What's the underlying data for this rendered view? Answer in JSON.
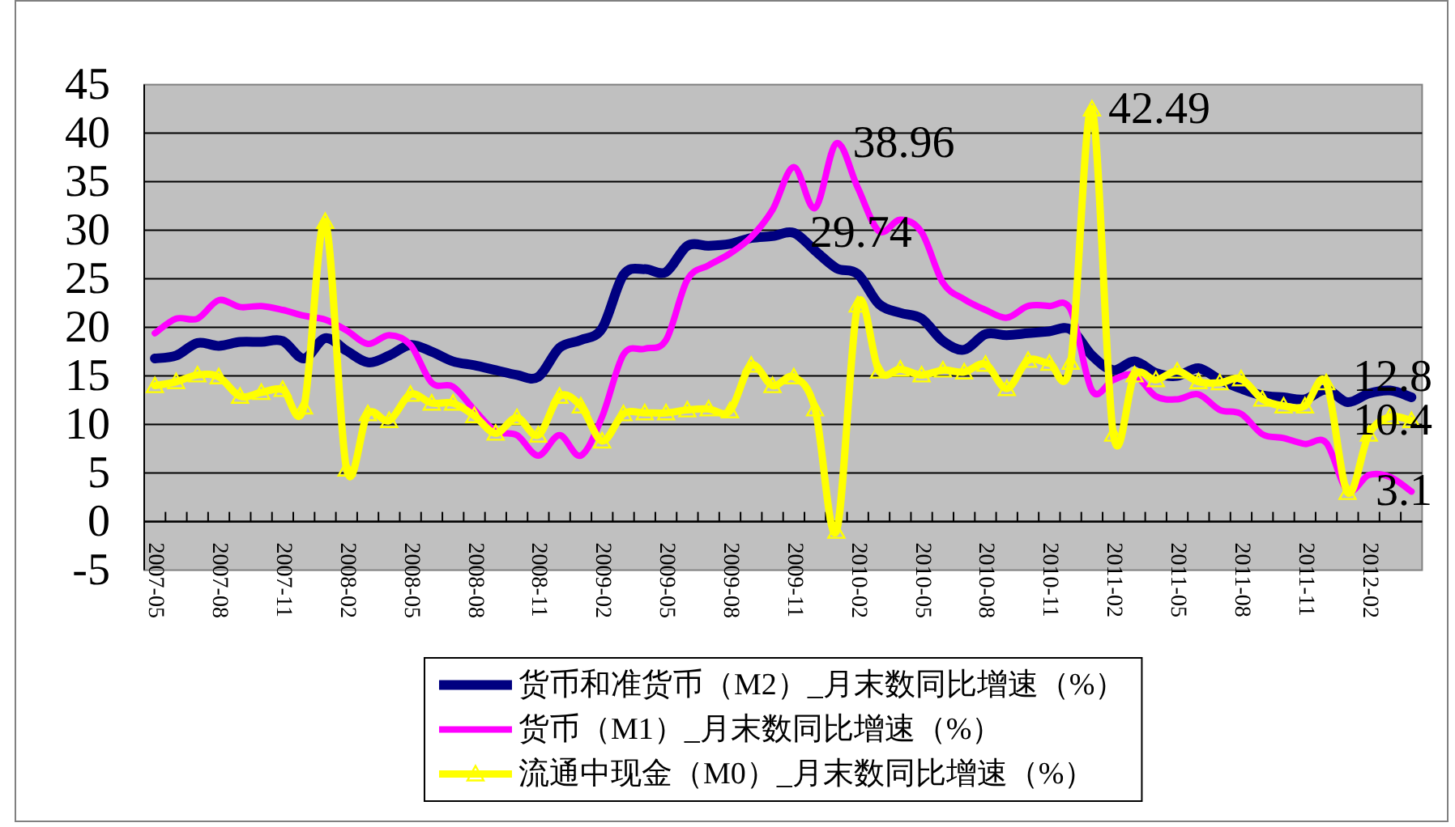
{
  "chart_data": {
    "type": "line",
    "categories": [
      "2007-05",
      null,
      null,
      "2007-08",
      null,
      null,
      "2007-11",
      null,
      null,
      "2008-02",
      null,
      null,
      "2008-05",
      null,
      null,
      "2008-08",
      null,
      null,
      "2008-11",
      null,
      null,
      "2009-02",
      null,
      null,
      "2009-05",
      null,
      null,
      "2009-08",
      null,
      null,
      "2009-11",
      null,
      null,
      "2010-02",
      null,
      null,
      "2010-05",
      null,
      null,
      "2010-08",
      null,
      null,
      "2010-11",
      null,
      null,
      "2011-02",
      null,
      null,
      "2011-05",
      null,
      null,
      "2011-08",
      null,
      null,
      "2011-11",
      null,
      null,
      "2012-02",
      null,
      null
    ],
    "ylim": [
      -5,
      45
    ],
    "yticks": [
      -5,
      0,
      5,
      10,
      15,
      20,
      25,
      30,
      35,
      40,
      45
    ],
    "grid": "y",
    "legend": "bottom",
    "series": [
      {
        "name": "货币和准货币（M2）_月末数同比增速（%）",
        "color": "#000080",
        "values": [
          16.8,
          17.1,
          18.4,
          18.1,
          18.5,
          18.5,
          18.6,
          16.8,
          18.9,
          17.6,
          16.4,
          17.1,
          18.2,
          17.5,
          16.5,
          16.1,
          15.6,
          15.1,
          14.9,
          17.9,
          18.7,
          19.9,
          25.4,
          26.0,
          25.7,
          28.4,
          28.4,
          28.6,
          29.2,
          29.4,
          29.74,
          27.9,
          26.1,
          25.5,
          22.4,
          21.5,
          20.9,
          18.6,
          17.7,
          19.3,
          19.2,
          19.4,
          19.6,
          19.8,
          17.1,
          15.6,
          16.5,
          15.3,
          15.0,
          15.8,
          14.6,
          13.7,
          13.0,
          12.8,
          12.6,
          13.6,
          12.3,
          13.2,
          13.5,
          12.8
        ],
        "value_labels": [
          null,
          null,
          null,
          null,
          null,
          null,
          null,
          null,
          null,
          null,
          null,
          null,
          null,
          null,
          null,
          null,
          null,
          null,
          null,
          null,
          null,
          null,
          null,
          null,
          null,
          null,
          null,
          null,
          null,
          null,
          "29.74",
          null,
          null,
          null,
          null,
          null,
          null,
          null,
          null,
          null,
          null,
          null,
          null,
          null,
          null,
          null,
          null,
          null,
          null,
          null,
          null,
          null,
          null,
          null,
          null,
          null,
          null,
          null,
          null,
          "12.8"
        ]
      },
      {
        "name": "货币（M1）_月末数同比增速（%）",
        "color": "#ff00ff",
        "values": [
          19.4,
          20.9,
          20.9,
          22.8,
          22.1,
          22.2,
          21.8,
          21.2,
          20.8,
          19.7,
          18.3,
          19.2,
          18.2,
          14.3,
          13.9,
          11.5,
          9.3,
          8.9,
          6.8,
          8.9,
          6.8,
          10.8,
          17.2,
          17.8,
          18.7,
          24.9,
          26.4,
          27.6,
          29.3,
          32.1,
          36.5,
          32.3,
          38.96,
          34.4,
          29.9,
          31.1,
          29.8,
          24.6,
          22.9,
          21.8,
          21.0,
          22.2,
          22.2,
          21.8,
          13.5,
          14.6,
          15.1,
          12.9,
          12.6,
          13.1,
          11.5,
          11.1,
          9.0,
          8.6,
          8.0,
          8.1,
          3.2,
          4.8,
          4.6,
          3.1
        ],
        "value_labels": [
          null,
          null,
          null,
          null,
          null,
          null,
          null,
          null,
          null,
          null,
          null,
          null,
          null,
          null,
          null,
          null,
          null,
          null,
          null,
          null,
          null,
          null,
          null,
          null,
          null,
          null,
          null,
          null,
          null,
          null,
          null,
          null,
          "38.96",
          null,
          null,
          null,
          null,
          null,
          null,
          null,
          null,
          null,
          null,
          null,
          null,
          null,
          null,
          null,
          null,
          null,
          null,
          null,
          null,
          null,
          null,
          null,
          null,
          null,
          null,
          "3.1"
        ]
      },
      {
        "name": "流通中现金（M0）_月末数同比增速（%）",
        "color": "#ffff00",
        "marker": "triangle",
        "values": [
          14.0,
          14.4,
          15.1,
          14.9,
          12.9,
          13.3,
          13.6,
          11.8,
          30.9,
          5.4,
          11.1,
          10.4,
          13.1,
          12.2,
          12.2,
          10.9,
          9.1,
          10.7,
          8.9,
          12.9,
          11.9,
          8.3,
          11.1,
          11.2,
          11.2,
          11.5,
          11.6,
          11.4,
          16.1,
          14.0,
          14.9,
          11.6,
          -1.0,
          22.3,
          15.5,
          15.7,
          15.1,
          15.6,
          15.4,
          16.2,
          13.7,
          16.6,
          16.3,
          16.4,
          42.49,
          9.0,
          15.1,
          14.6,
          15.5,
          14.4,
          14.3,
          14.7,
          12.6,
          11.9,
          11.9,
          14.3,
          3.0,
          9.0,
          10.8,
          10.4
        ],
        "value_labels": [
          null,
          null,
          null,
          null,
          null,
          null,
          null,
          null,
          null,
          null,
          null,
          null,
          null,
          null,
          null,
          null,
          null,
          null,
          null,
          null,
          null,
          null,
          null,
          null,
          null,
          null,
          null,
          null,
          null,
          null,
          null,
          null,
          null,
          null,
          null,
          null,
          null,
          null,
          null,
          null,
          null,
          null,
          null,
          null,
          "42.49",
          null,
          null,
          null,
          null,
          null,
          null,
          null,
          null,
          null,
          null,
          null,
          null,
          null,
          null,
          "10.4"
        ]
      }
    ]
  }
}
